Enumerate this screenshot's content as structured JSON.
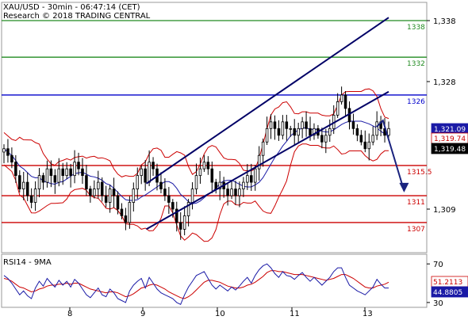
{
  "header": {
    "title": "XAU/USD - 30min - 06:47:14 (CET)",
    "subtitle": "Research © 2018 TRADING CENTRAL"
  },
  "colors": {
    "candle": "#000000",
    "bollinger": "#cc0000",
    "ma": "#1a1aa6",
    "channel": "#000066",
    "green_level": "#228b22",
    "blue_level": "#0000cc",
    "red_level": "#cc0000",
    "rsi_line": "#1a1aa6",
    "rsi_ma": "#cc0000",
    "arrow": "#1a237e"
  },
  "chart_data": [
    {
      "type": "candlestick",
      "ylim": [
        1304,
        1341
      ],
      "yticks": [
        1309,
        1328,
        1338
      ],
      "ytick_labels": [
        "1,309",
        "1,328",
        "1,338"
      ],
      "x_dates": [
        "8",
        "9",
        "10",
        "11",
        "13"
      ],
      "horizontal_levels": [
        {
          "value": 1338,
          "label": "1338",
          "color": "green"
        },
        {
          "value": 1332,
          "label": "1332",
          "color": "green"
        },
        {
          "value": 1326,
          "label": "1326",
          "color": "blue"
        },
        {
          "value": 1315.5,
          "label": "1315.5",
          "color": "red"
        },
        {
          "value": 1311,
          "label": "1311",
          "color": "red"
        },
        {
          "value": 1307,
          "label": "1307",
          "color": "red"
        }
      ],
      "price_tags": [
        {
          "value": 1321.09,
          "label": "1,321.09",
          "style": "blue"
        },
        {
          "value": 1319.74,
          "label": "1,319.74",
          "style": "red"
        },
        {
          "value": 1319.48,
          "label": "1,319.48",
          "style": "black"
        }
      ],
      "close_prices": [
        1318,
        1317,
        1316,
        1314,
        1312,
        1313,
        1311,
        1310,
        1312,
        1314,
        1313,
        1315,
        1314,
        1313,
        1315,
        1314,
        1315,
        1314,
        1316,
        1315,
        1314,
        1312,
        1311,
        1312,
        1313,
        1311,
        1310,
        1312,
        1311,
        1309,
        1308,
        1307,
        1310,
        1312,
        1314,
        1315,
        1313,
        1316,
        1315,
        1313,
        1312,
        1311,
        1310,
        1309,
        1307,
        1306,
        1308,
        1310,
        1312,
        1314,
        1315,
        1316,
        1315,
        1313,
        1312,
        1313,
        1312,
        1311,
        1312,
        1311,
        1312,
        1313,
        1314,
        1313,
        1315,
        1317,
        1319,
        1321,
        1322,
        1321,
        1320,
        1322,
        1321,
        1321,
        1320,
        1321,
        1322,
        1321,
        1320,
        1321,
        1320,
        1319,
        1320,
        1321,
        1323,
        1325,
        1326,
        1324,
        1322,
        1321,
        1320,
        1319,
        1318,
        1319,
        1320,
        1322,
        1321,
        1320,
        1321
      ],
      "channel": {
        "upper": [
          [
            0.37,
            1312.8
          ],
          [
            1.0,
            1338.5
          ]
        ],
        "lower": [
          [
            0.37,
            1306.0
          ],
          [
            1.0,
            1326.5
          ]
        ]
      },
      "forecast_arrow": [
        [
          0.985,
          1322.2
        ],
        [
          1.04,
          1311.5
        ]
      ]
    },
    {
      "type": "line",
      "title": "RSI14 - 9MA",
      "ylim": [
        25,
        80
      ],
      "yticks": [
        30,
        70
      ],
      "ytick_labels": [
        "30",
        "70"
      ],
      "value_tags": [
        {
          "value": 51.2113,
          "label": "51.2113",
          "style": "red"
        },
        {
          "value": 44.8805,
          "label": "44.8805",
          "style": "blue"
        }
      ],
      "rsi_values": [
        58,
        55,
        50,
        44,
        38,
        42,
        37,
        34,
        45,
        52,
        47,
        55,
        50,
        46,
        53,
        48,
        52,
        46,
        54,
        50,
        44,
        38,
        35,
        40,
        45,
        38,
        36,
        44,
        40,
        34,
        32,
        30,
        42,
        48,
        52,
        55,
        45,
        56,
        50,
        44,
        40,
        38,
        36,
        34,
        30,
        28,
        38,
        46,
        52,
        58,
        60,
        62,
        55,
        48,
        44,
        48,
        45,
        42,
        46,
        43,
        47,
        52,
        56,
        50,
        58,
        64,
        68,
        70,
        66,
        60,
        56,
        62,
        58,
        57,
        54,
        58,
        61,
        56,
        52,
        56,
        52,
        48,
        52,
        56,
        62,
        66,
        66,
        56,
        48,
        45,
        42,
        40,
        38,
        42,
        46,
        54,
        49,
        45,
        45
      ],
      "ma_values": [
        55,
        54,
        52,
        49,
        46,
        45,
        43,
        41,
        42,
        44,
        45,
        47,
        48,
        48,
        49,
        49,
        50,
        49,
        50,
        50,
        48,
        46,
        44,
        43,
        42,
        41,
        40,
        41,
        41,
        40,
        38,
        36,
        37,
        39,
        42,
        45,
        46,
        48,
        49,
        48,
        46,
        44,
        41,
        39,
        37,
        35,
        34,
        36,
        39,
        43,
        47,
        51,
        53,
        53,
        52,
        51,
        49,
        47,
        46,
        45,
        45,
        46,
        48,
        49,
        51,
        54,
        57,
        61,
        63,
        63,
        62,
        62,
        61,
        60,
        59,
        59,
        59,
        58,
        57,
        56,
        55,
        54,
        53,
        54,
        55,
        57,
        59,
        59,
        57,
        55,
        52,
        49,
        46,
        45,
        45,
        47,
        48,
        49,
        51
      ]
    }
  ]
}
